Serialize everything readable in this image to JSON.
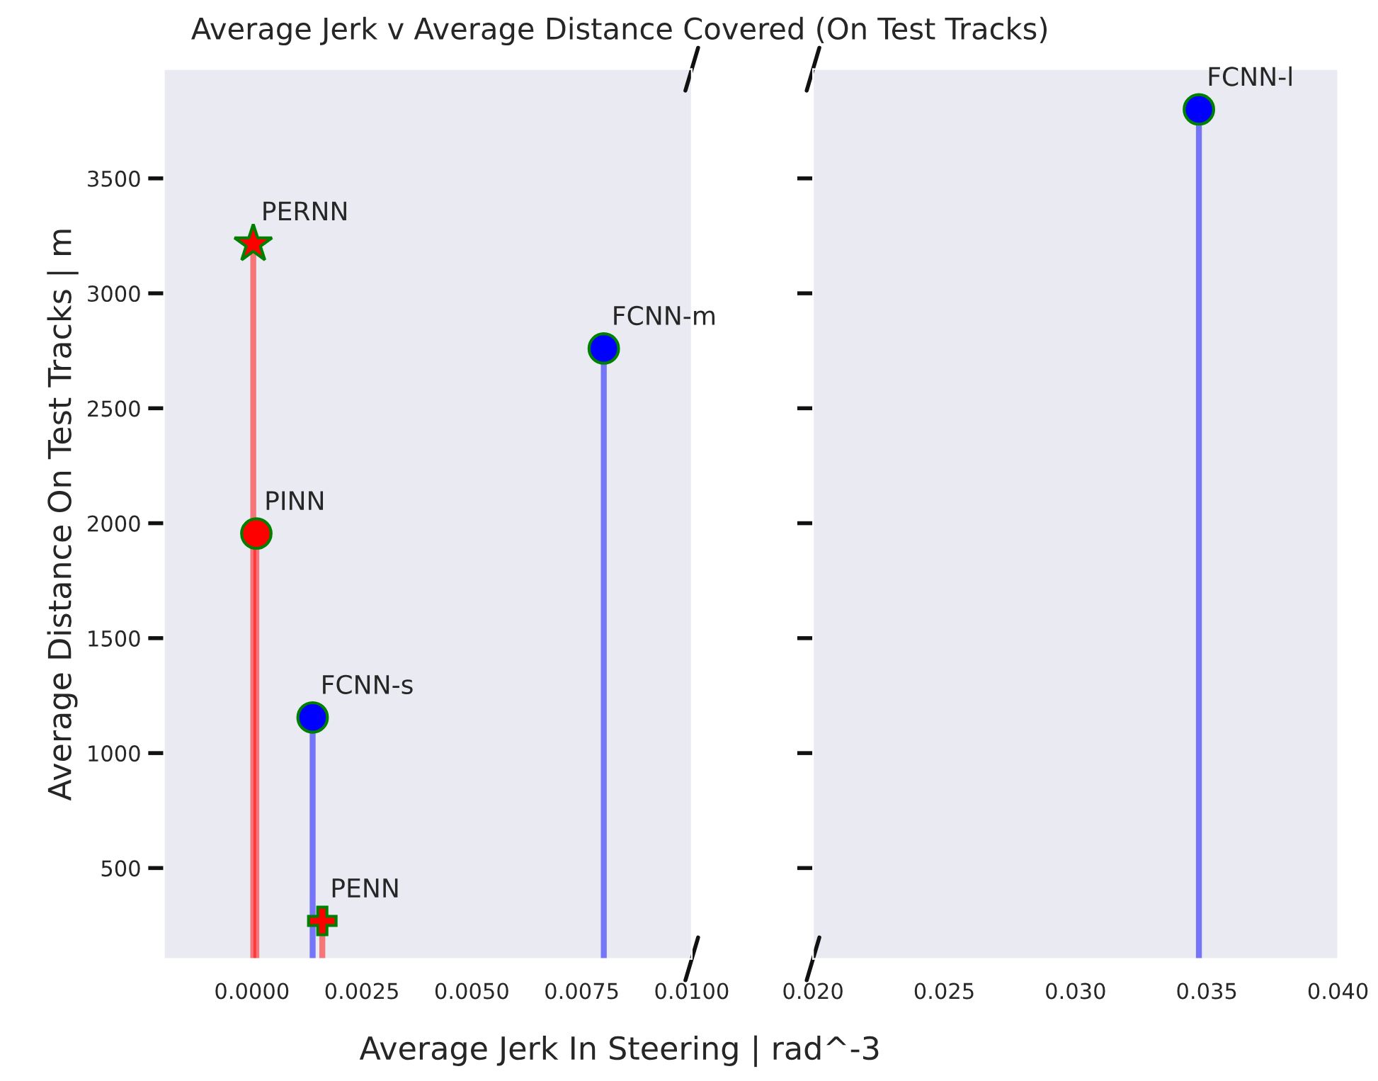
{
  "chart_data": [
    {
      "type": "lollipop",
      "title": "Average Jerk v Average Distance Covered (On Test Tracks)",
      "xlabel": "Average Jerk In Steering | rad^-3",
      "ylabel": "Average Distance On Test Tracks | m",
      "xlim": [
        -0.002,
        0.01
      ],
      "xticks": [
        {
          "value": 0,
          "label": "0.0000"
        },
        0.0025,
        {
          "value": 0.005,
          "label": "0.0050"
        },
        0.0075,
        {
          "value": 0.01,
          "label": "0.0100"
        }
      ],
      "ylim": [
        105,
        3975
      ],
      "yticks": [
        500,
        1000,
        1500,
        2000,
        2500,
        3000,
        3500
      ],
      "grid": false,
      "legend": false,
      "series": [
        {
          "name": "PERNN",
          "color": "#ff0000",
          "marker": "star",
          "x": [
            3e-05
          ],
          "values": [
            3215
          ]
        },
        {
          "name": "PINN",
          "color": "#ff0000",
          "marker": "circle",
          "x": [
            0.0001
          ],
          "values": [
            1955
          ]
        },
        {
          "name": "FCNN-m",
          "color": "#0000ff",
          "marker": "circle",
          "x": [
            0.008
          ],
          "values": [
            2760
          ]
        },
        {
          "name": "FCNN-s",
          "color": "#0000ff",
          "marker": "circle",
          "x": [
            0.00138
          ],
          "values": [
            1155
          ]
        },
        {
          "name": "PENN",
          "color": "#ff0000",
          "marker": "cross",
          "x": [
            0.0016
          ],
          "values": [
            270
          ]
        }
      ]
    },
    {
      "type": "lollipop",
      "xlim": [
        0.02,
        0.04
      ],
      "xticks": [
        {
          "value": 0.02,
          "label": "0.020"
        },
        {
          "value": 0.025,
          "label": "0.025"
        },
        {
          "value": 0.03,
          "label": "0.030"
        },
        {
          "value": 0.035,
          "label": "0.035"
        },
        {
          "value": 0.04,
          "label": "0.040"
        }
      ],
      "ylim": [
        105,
        3975
      ],
      "yticks": [
        500,
        1000,
        1500,
        2000,
        2500,
        3000,
        3500
      ],
      "tick_labels": "x",
      "grid": false,
      "legend": false,
      "series": [
        {
          "name": "FCNN-l",
          "color": "#0000ff",
          "marker": "circle",
          "x": [
            0.0347
          ],
          "values": [
            3800
          ]
        }
      ]
    }
  ]
}
